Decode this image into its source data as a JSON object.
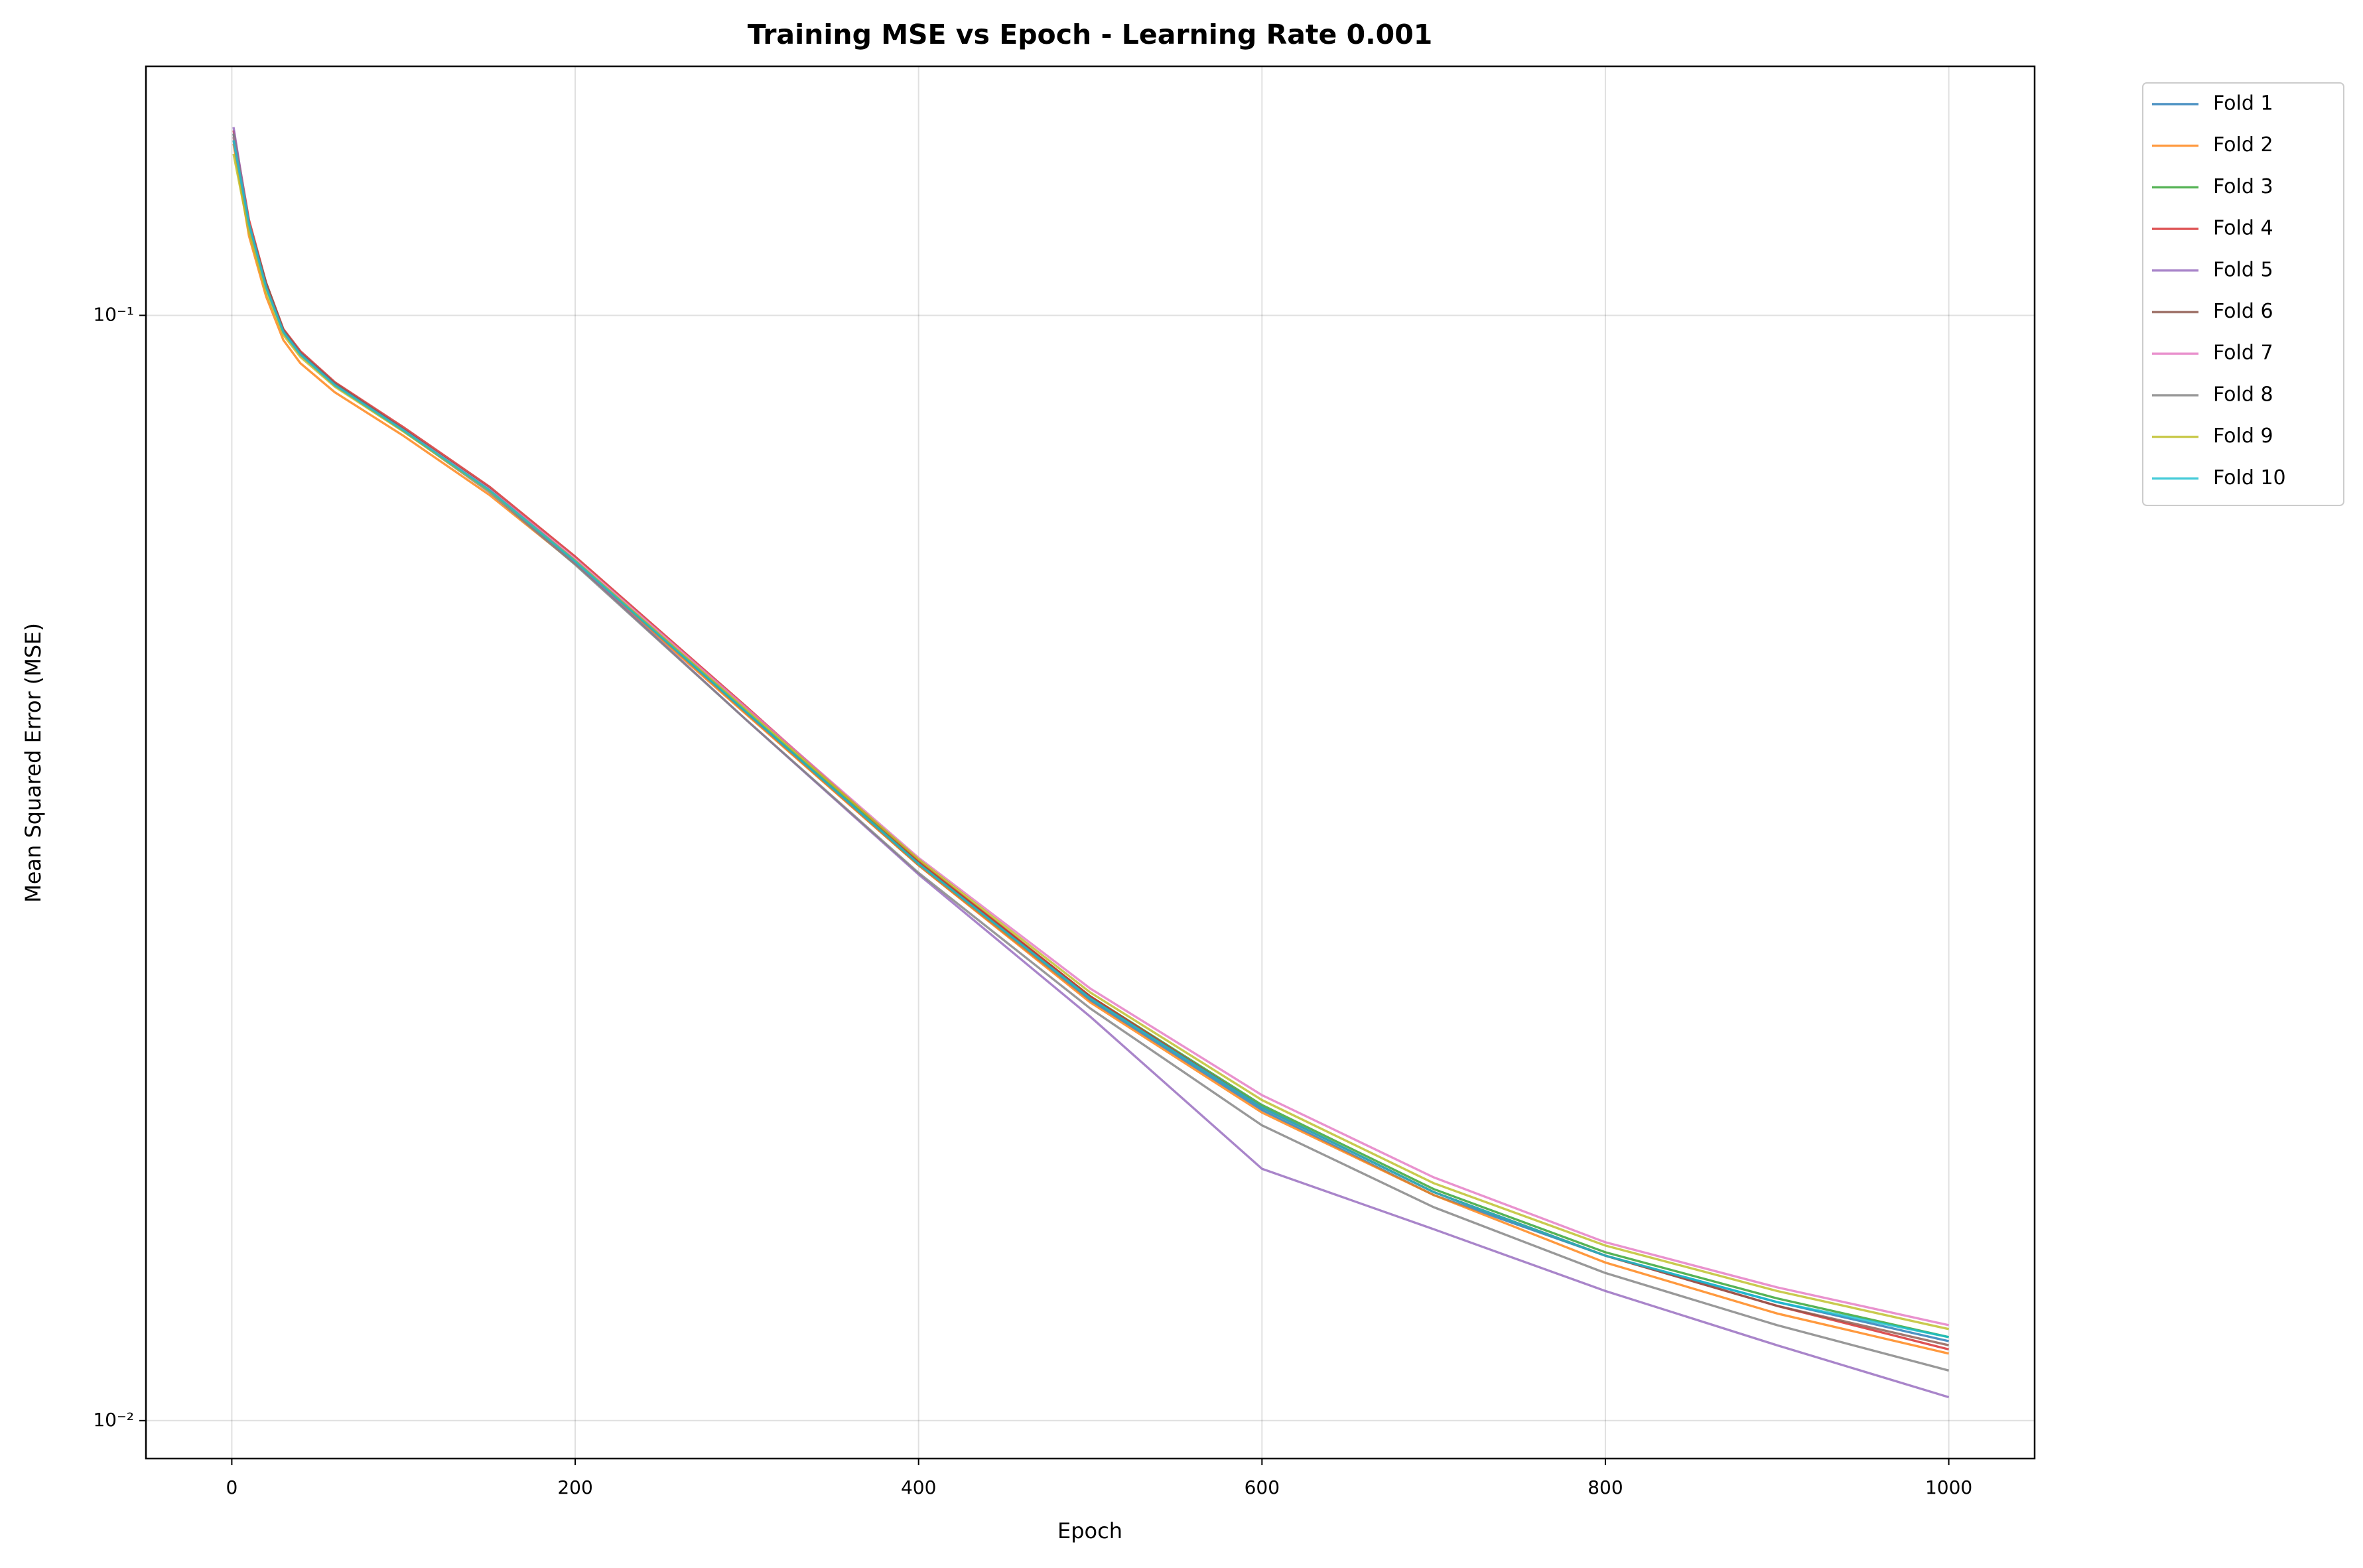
{
  "chart_data": {
    "type": "line",
    "title": "Training MSE vs Epoch - Learning Rate 0.001",
    "x_label": "Epoch",
    "y_label": "Mean Squared Error (MSE)",
    "yscale": "log",
    "grid": true,
    "legend": "outside upper right",
    "xlim": [
      -50,
      1050
    ],
    "xticks": [
      0,
      200,
      400,
      600,
      800,
      1000
    ],
    "ylim": [
      0.00924,
      0.168
    ],
    "yticks": [
      {
        "value": 0.01,
        "label": "10⁻²"
      },
      {
        "value": 0.1,
        "label": "10⁻¹"
      }
    ],
    "x": [
      1,
      10,
      20,
      30,
      40,
      60,
      100,
      150,
      200,
      300,
      400,
      500,
      600,
      700,
      800,
      900,
      1000
    ],
    "series": [
      {
        "name": "Fold 1",
        "color": "#1f77b4",
        "values": [
          0.146,
          0.121,
          0.106,
          0.0965,
          0.0921,
          0.0864,
          0.0786,
          0.0694,
          0.0598,
          0.0436,
          0.0318,
          0.024,
          0.0191,
          0.016,
          0.0141,
          0.0128,
          0.0118
        ]
      },
      {
        "name": "Fold 2",
        "color": "#ff7f0e",
        "values": [
          0.143,
          0.118,
          0.104,
          0.095,
          0.0905,
          0.0852,
          0.0778,
          0.0688,
          0.0596,
          0.0435,
          0.0318,
          0.0239,
          0.019,
          0.016,
          0.0139,
          0.0125,
          0.0115
        ]
      },
      {
        "name": "Fold 3",
        "color": "#2ca02c",
        "values": [
          0.145,
          0.12,
          0.106,
          0.0966,
          0.0922,
          0.0865,
          0.0787,
          0.0695,
          0.06,
          0.0438,
          0.032,
          0.0242,
          0.0193,
          0.0162,
          0.0142,
          0.0129,
          0.0119
        ]
      },
      {
        "name": "Fold 4",
        "color": "#d62728",
        "values": [
          0.147,
          0.122,
          0.107,
          0.0972,
          0.0928,
          0.087,
          0.0792,
          0.07,
          0.0605,
          0.0442,
          0.0321,
          0.0242,
          0.0192,
          0.0161,
          0.0141,
          0.0127,
          0.0116
        ]
      },
      {
        "name": "Fold 5",
        "color": "#9467bd",
        "values": [
          0.148,
          0.121,
          0.106,
          0.0968,
          0.0924,
          0.0866,
          0.0788,
          0.0694,
          0.0597,
          0.043,
          0.0312,
          0.0232,
          0.0169,
          0.0149,
          0.0131,
          0.0117,
          0.0105
        ]
      },
      {
        "name": "Fold 6",
        "color": "#8c564b",
        "values": [
          0.144,
          0.121,
          0.107,
          0.097,
          0.0925,
          0.0868,
          0.0789,
          0.0697,
          0.06,
          0.0437,
          0.0319,
          0.0241,
          0.0192,
          0.0161,
          0.0141,
          0.0127,
          0.0117
        ]
      },
      {
        "name": "Fold 7",
        "color": "#e377c2",
        "values": [
          0.145,
          0.12,
          0.106,
          0.0964,
          0.092,
          0.0864,
          0.0787,
          0.0696,
          0.0602,
          0.0441,
          0.0323,
          0.0246,
          0.0197,
          0.0166,
          0.0145,
          0.0132,
          0.0122
        ]
      },
      {
        "name": "Fold 8",
        "color": "#7f7f7f",
        "values": [
          0.146,
          0.121,
          0.106,
          0.0966,
          0.0922,
          0.0865,
          0.0786,
          0.0692,
          0.0595,
          0.043,
          0.0313,
          0.0236,
          0.0185,
          0.0156,
          0.0136,
          0.0122,
          0.0111
        ]
      },
      {
        "name": "Fold 9",
        "color": "#bcbd22",
        "values": [
          0.14,
          0.119,
          0.105,
          0.096,
          0.0917,
          0.0862,
          0.0785,
          0.0694,
          0.06,
          0.0439,
          0.0322,
          0.0244,
          0.0195,
          0.0164,
          0.0144,
          0.0131,
          0.0121
        ]
      },
      {
        "name": "Fold 10",
        "color": "#17becf",
        "values": [
          0.144,
          0.121,
          0.106,
          0.0966,
          0.0922,
          0.0865,
          0.0787,
          0.0695,
          0.0599,
          0.0437,
          0.0319,
          0.0241,
          0.0192,
          0.0161,
          0.0141,
          0.0128,
          0.0119
        ]
      }
    ]
  }
}
